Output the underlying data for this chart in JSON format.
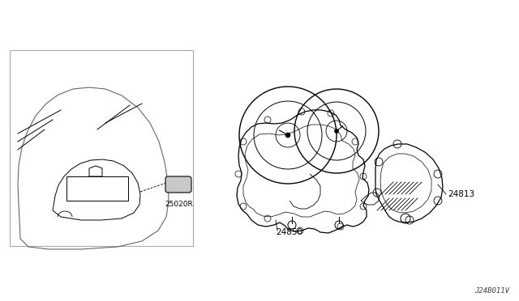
{
  "background_color": "#ffffff",
  "line_color": "#000000",
  "text_color": "#000000",
  "label_24850": "24850",
  "label_24813": "24813",
  "label_25020R": "25020R",
  "label_ref": "J24B011V",
  "fig_width": 6.4,
  "fig_height": 3.72,
  "dpi": 100
}
